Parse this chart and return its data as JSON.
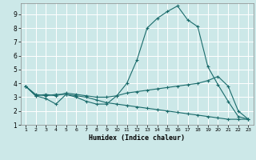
{
  "title": "",
  "xlabel": "Humidex (Indice chaleur)",
  "bg_color": "#cce8e8",
  "grid_color": "#ffffff",
  "line_color": "#1a6b6b",
  "xlim": [
    0.5,
    23.5
  ],
  "ylim": [
    1,
    9.8
  ],
  "xticks": [
    1,
    2,
    3,
    4,
    5,
    6,
    7,
    8,
    9,
    10,
    11,
    12,
    13,
    14,
    15,
    16,
    17,
    18,
    19,
    20,
    21,
    22,
    23
  ],
  "yticks": [
    1,
    2,
    3,
    4,
    5,
    6,
    7,
    8,
    9
  ],
  "series": [
    {
      "x": [
        1,
        2,
        3,
        4,
        5,
        6,
        7,
        8,
        9,
        10,
        11,
        12,
        13,
        14,
        15,
        16,
        17,
        18,
        19,
        20,
        21,
        22,
        23
      ],
      "y": [
        3.8,
        3.1,
        2.9,
        2.5,
        3.2,
        3.0,
        2.7,
        2.5,
        2.5,
        3.1,
        4.0,
        5.7,
        8.0,
        8.7,
        9.2,
        9.6,
        8.6,
        8.1,
        5.2,
        3.9,
        2.7,
        1.6,
        1.4
      ]
    },
    {
      "x": [
        1,
        2,
        3,
        4,
        5,
        6,
        7,
        8,
        9,
        10,
        11,
        12,
        13,
        14,
        15,
        16,
        17,
        18,
        19,
        20,
        21,
        22,
        23
      ],
      "y": [
        3.8,
        3.1,
        3.2,
        3.1,
        3.3,
        3.2,
        3.1,
        3.0,
        3.0,
        3.1,
        3.3,
        3.4,
        3.5,
        3.6,
        3.7,
        3.8,
        3.9,
        4.0,
        4.2,
        4.5,
        3.8,
        2.0,
        1.4
      ]
    },
    {
      "x": [
        1,
        2,
        3,
        4,
        5,
        6,
        7,
        8,
        9,
        10,
        11,
        12,
        13,
        14,
        15,
        16,
        17,
        18,
        19,
        20,
        21,
        22,
        23
      ],
      "y": [
        3.8,
        3.2,
        3.1,
        3.2,
        3.2,
        3.1,
        3.0,
        2.8,
        2.6,
        2.5,
        2.4,
        2.3,
        2.2,
        2.1,
        2.0,
        1.9,
        1.8,
        1.7,
        1.6,
        1.5,
        1.4,
        1.4,
        1.4
      ]
    }
  ]
}
